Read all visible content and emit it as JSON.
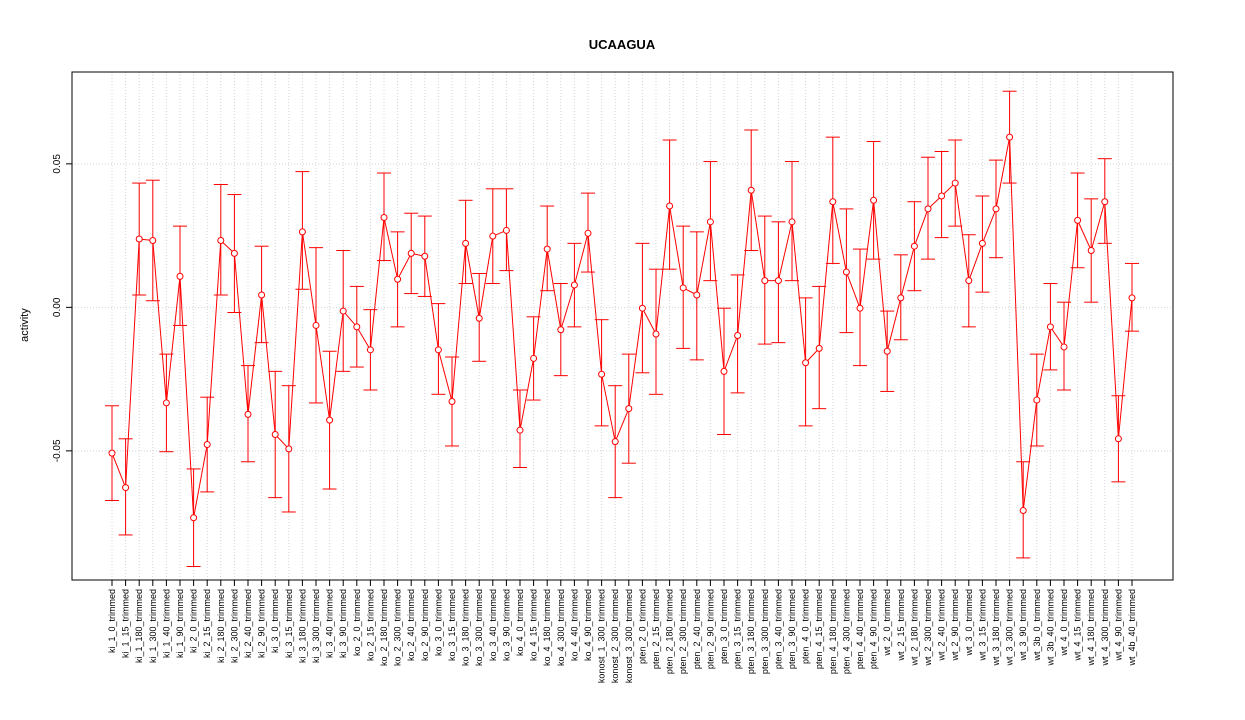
{
  "chart_data": {
    "type": "line",
    "title": "UCAAGUA",
    "xlabel": "",
    "ylabel": "activity",
    "ylim": [
      -0.095,
      0.082
    ],
    "yticks": [
      -0.05,
      0.0,
      0.05
    ],
    "ytick_labels": [
      "-0.05",
      "0.00",
      "0.05"
    ],
    "grid": true,
    "color": "#ff0000",
    "categories": [
      "ki_1_0_trimmed",
      "ki_1_15_trimmed",
      "ki_1_180_trimmed",
      "ki_1_300_trimmed",
      "ki_1_40_trimmed",
      "ki_1_90_trimmed",
      "ki_2_0_trimmed",
      "ki_2_15_trimmed",
      "ki_2_180_trimmed",
      "ki_2_300_trimmed",
      "ki_2_40_trimmed",
      "ki_2_90_trimmed",
      "ki_3_0_trimmed",
      "ki_3_15_trimmed",
      "ki_3_180_trimmed",
      "ki_3_300_trimmed",
      "ki_3_40_trimmed",
      "ki_3_90_trimmed",
      "ko_2_0_trimmed",
      "ko_2_15_trimmed",
      "ko_2_180_trimmed",
      "ko_2_300_trimmed",
      "ko_2_40_trimmed",
      "ko_2_90_trimmed",
      "ko_3_0_trimmed",
      "ko_3_15_trimmed",
      "ko_3_180_trimmed",
      "ko_3_300_trimmed",
      "ko_3_40_trimmed",
      "ko_3_90_trimmed",
      "ko_4_0_trimmed",
      "ko_4_15_trimmed",
      "ko_4_180_trimmed",
      "ko_4_300_trimmed",
      "ko_4_40_trimmed",
      "ko_4_90_trimmed",
      "konost_1_300_trimmed",
      "konost_2_300_trimmed",
      "konost_3_300_trimmed",
      "pten_2_0_trimmed",
      "pten_2_15_trimmed",
      "pten_2_180_trimmed",
      "pten_2_300_trimmed",
      "pten_2_40_trimmed",
      "pten_2_90_trimmed",
      "pten_3_0_trimmed",
      "pten_3_15_trimmed",
      "pten_3_180_trimmed",
      "pten_3_300_trimmed",
      "pten_3_40_trimmed",
      "pten_3_90_trimmed",
      "pten_4_0_trimmed",
      "pten_4_15_trimmed",
      "pten_4_180_trimmed",
      "pten_4_300_trimmed",
      "pten_4_40_trimmed",
      "pten_4_90_trimmed",
      "wt_2_0_trimmed",
      "wt_2_15_trimmed",
      "wt_2_180_trimmed",
      "wt_2_300_trimmed",
      "wt_2_40_trimmed",
      "wt_2_90_trimmed",
      "wt_3_0_trimmed",
      "wt_3_15_trimmed",
      "wt_3_180_trimmed",
      "wt_3_300_trimmed",
      "wt_3_90_trimmed",
      "wt_3b_0_trimmed",
      "wt_3b_40_trimmed",
      "wt_4_0_trimmed",
      "wt_4_15_trimmed",
      "wt_4_180_trimmed",
      "wt_4_300_trimmed",
      "wt_4_90_trimmed",
      "wt_4b_40_trimmed"
    ],
    "values": [
      -0.0508,
      -0.0628,
      0.0238,
      0.0233,
      -0.0333,
      0.0108,
      -0.0733,
      -0.0478,
      0.0233,
      0.0188,
      -0.0373,
      0.0043,
      -0.0443,
      -0.0493,
      0.0263,
      -0.0063,
      -0.0393,
      -0.0013,
      -0.0068,
      -0.0148,
      0.0313,
      0.0098,
      0.0188,
      0.0178,
      -0.0148,
      -0.0328,
      0.0223,
      -0.0038,
      0.0248,
      0.0268,
      -0.0428,
      -0.0178,
      0.0203,
      -0.0078,
      0.0078,
      0.0258,
      -0.0233,
      -0.0468,
      -0.0353,
      -0.0003,
      -0.0093,
      0.0353,
      0.0068,
      0.0043,
      0.0298,
      -0.0223,
      -0.0098,
      0.0408,
      0.0093,
      0.0093,
      0.0298,
      -0.0193,
      -0.0143,
      0.0368,
      0.0123,
      -0.0003,
      0.0373,
      -0.0153,
      0.0033,
      0.0213,
      0.0343,
      0.0388,
      0.0433,
      0.0093,
      0.0223,
      0.0343,
      0.0593,
      -0.0708,
      -0.0323,
      -0.0068,
      -0.0138,
      0.0303,
      0.0198,
      0.0368,
      -0.0458,
      0.0033
    ],
    "lower": [
      -0.0673,
      -0.0793,
      0.0043,
      0.0023,
      -0.0503,
      -0.0063,
      -0.0903,
      -0.0643,
      0.0043,
      -0.0018,
      -0.0538,
      -0.0123,
      -0.0663,
      -0.0713,
      0.0063,
      -0.0333,
      -0.0633,
      -0.0223,
      -0.0208,
      -0.0288,
      0.0163,
      -0.0068,
      0.0048,
      0.0038,
      -0.0303,
      -0.0483,
      0.0083,
      -0.0188,
      0.0083,
      0.0128,
      -0.0558,
      -0.0323,
      0.0058,
      -0.0238,
      -0.0068,
      0.0123,
      -0.0413,
      -0.0663,
      -0.0543,
      -0.0228,
      -0.0303,
      0.0133,
      -0.0143,
      -0.0183,
      0.0093,
      -0.0443,
      -0.0298,
      0.0198,
      -0.0128,
      -0.0123,
      0.0093,
      -0.0413,
      -0.0353,
      0.0153,
      -0.0088,
      -0.0203,
      0.0168,
      -0.0293,
      -0.0113,
      0.0058,
      0.0168,
      0.0243,
      0.0283,
      -0.0068,
      0.0053,
      0.0173,
      0.0433,
      -0.0873,
      -0.0483,
      -0.0218,
      -0.0288,
      0.0138,
      0.0018,
      0.0223,
      -0.0608,
      -0.0083
    ],
    "upper": [
      -0.0343,
      -0.0458,
      0.0433,
      0.0443,
      -0.0163,
      0.0283,
      -0.0563,
      -0.0313,
      0.0428,
      0.0393,
      -0.0203,
      0.0213,
      -0.0223,
      -0.0273,
      0.0473,
      0.0208,
      -0.0153,
      0.0198,
      0.0073,
      -0.0008,
      0.0468,
      0.0263,
      0.0328,
      0.0318,
      0.0013,
      -0.0173,
      0.0373,
      0.0118,
      0.0413,
      0.0413,
      -0.0288,
      -0.0033,
      0.0353,
      0.0083,
      0.0223,
      0.0398,
      -0.0043,
      -0.0273,
      -0.0163,
      0.0223,
      0.0133,
      0.0583,
      0.0283,
      0.0263,
      0.0508,
      -0.0003,
      0.0113,
      0.0618,
      0.0318,
      0.0298,
      0.0508,
      0.0033,
      0.0073,
      0.0593,
      0.0343,
      0.0203,
      0.0578,
      -0.0013,
      0.0183,
      0.0368,
      0.0523,
      0.0543,
      0.0583,
      0.0253,
      0.0388,
      0.0513,
      0.0753,
      -0.0538,
      -0.0163,
      0.0083,
      0.0018,
      0.0468,
      0.0378,
      0.0518,
      -0.0308,
      0.0153
    ]
  }
}
